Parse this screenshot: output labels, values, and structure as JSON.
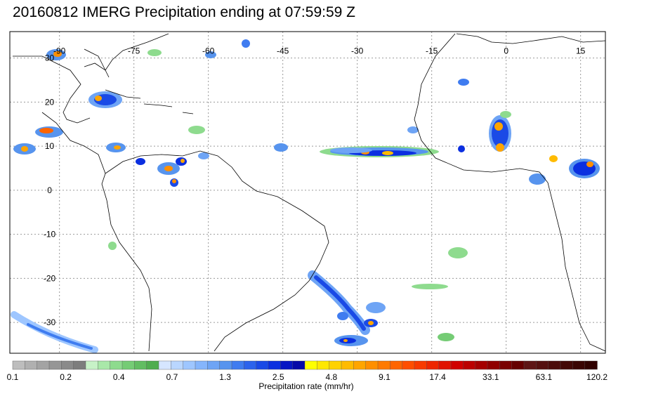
{
  "title": "20160812 IMERG Precipitation ending at 07:59:59 Z",
  "map": {
    "lon_range": [
      -100,
      20
    ],
    "lat_range": [
      -37,
      36
    ],
    "lon_ticks": [
      "-90",
      "-75",
      "-60",
      "-45",
      "-30",
      "-15",
      "0",
      "15"
    ],
    "lat_ticks": [
      "30",
      "20",
      "10",
      "0",
      "-10",
      "-20",
      "-30"
    ],
    "grid": "dotted",
    "land_outline_color": "#000000"
  },
  "colorbar": {
    "label": "Precipitation rate (mm/hr)",
    "tick_labels": [
      "0.1",
      "0.2",
      "0.4",
      "0.7",
      "1.3",
      "2.5",
      "4.8",
      "9.1",
      "17.4",
      "33.1",
      "63.1",
      "120.2"
    ],
    "colors": [
      "#bdbdbd",
      "#b0b0b0",
      "#a3a3a3",
      "#969696",
      "#8a8a8a",
      "#7d7d7d",
      "#c7f2c7",
      "#a9e8a9",
      "#8edb8e",
      "#75cc75",
      "#62bd62",
      "#50ad50",
      "#d6e6ff",
      "#b9d6ff",
      "#9ec6ff",
      "#85b5fc",
      "#6ea4f5",
      "#5794ee",
      "#3f7cf0",
      "#2c63ec",
      "#1a4ae6",
      "#0b2fe0",
      "#0716c4",
      "#0609a8",
      "#ffff00",
      "#ffe800",
      "#ffd200",
      "#ffbb00",
      "#ffa500",
      "#ff8f00",
      "#ff7a00",
      "#ff6400",
      "#ff4e00",
      "#f83a00",
      "#ee2600",
      "#e01200",
      "#d00000",
      "#bb0000",
      "#a50000",
      "#900000",
      "#7a0000",
      "#650000",
      "#5e1515",
      "#55100f",
      "#4c0c0a",
      "#430806",
      "#3a0503",
      "#310200"
    ]
  }
}
